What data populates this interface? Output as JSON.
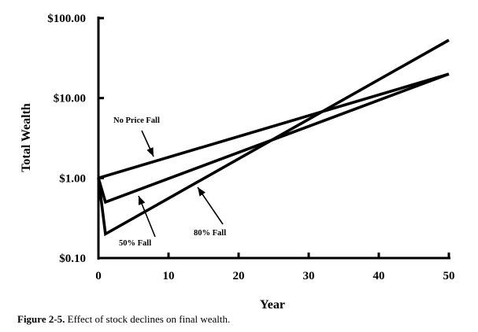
{
  "chart_data": {
    "type": "line",
    "title": "",
    "xlabel": "Year",
    "ylabel": "Total Wealth",
    "y_scale": "log",
    "xlim": [
      0,
      50
    ],
    "ylim": [
      0.1,
      100
    ],
    "x_ticks": [
      0,
      10,
      20,
      30,
      40,
      50
    ],
    "y_ticks": [
      {
        "value": 0.1,
        "label": "$0.10"
      },
      {
        "value": 1,
        "label": "$1.00"
      },
      {
        "value": 10,
        "label": "$10.00"
      },
      {
        "value": 100,
        "label": "$100.00"
      }
    ],
    "series": [
      {
        "name": "No Price Fall",
        "points": [
          [
            0,
            1
          ],
          [
            50,
            20
          ]
        ]
      },
      {
        "name": "50% Fall",
        "points": [
          [
            0,
            1
          ],
          [
            1,
            0.5
          ],
          [
            50,
            20
          ]
        ]
      },
      {
        "name": "80% Fall",
        "points": [
          [
            0,
            1
          ],
          [
            1,
            0.2
          ],
          [
            50,
            53
          ]
        ]
      }
    ],
    "annotations": [
      {
        "text": "No Price Fall",
        "series": "No Price Fall"
      },
      {
        "text": "50% Fall",
        "series": "50% Fall"
      },
      {
        "text": "80% Fall",
        "series": "80% Fall"
      }
    ],
    "grid": false,
    "legend": "none"
  },
  "caption": {
    "label": "Figure 2-5.",
    "text": "Effect of stock declines on final wealth."
  }
}
